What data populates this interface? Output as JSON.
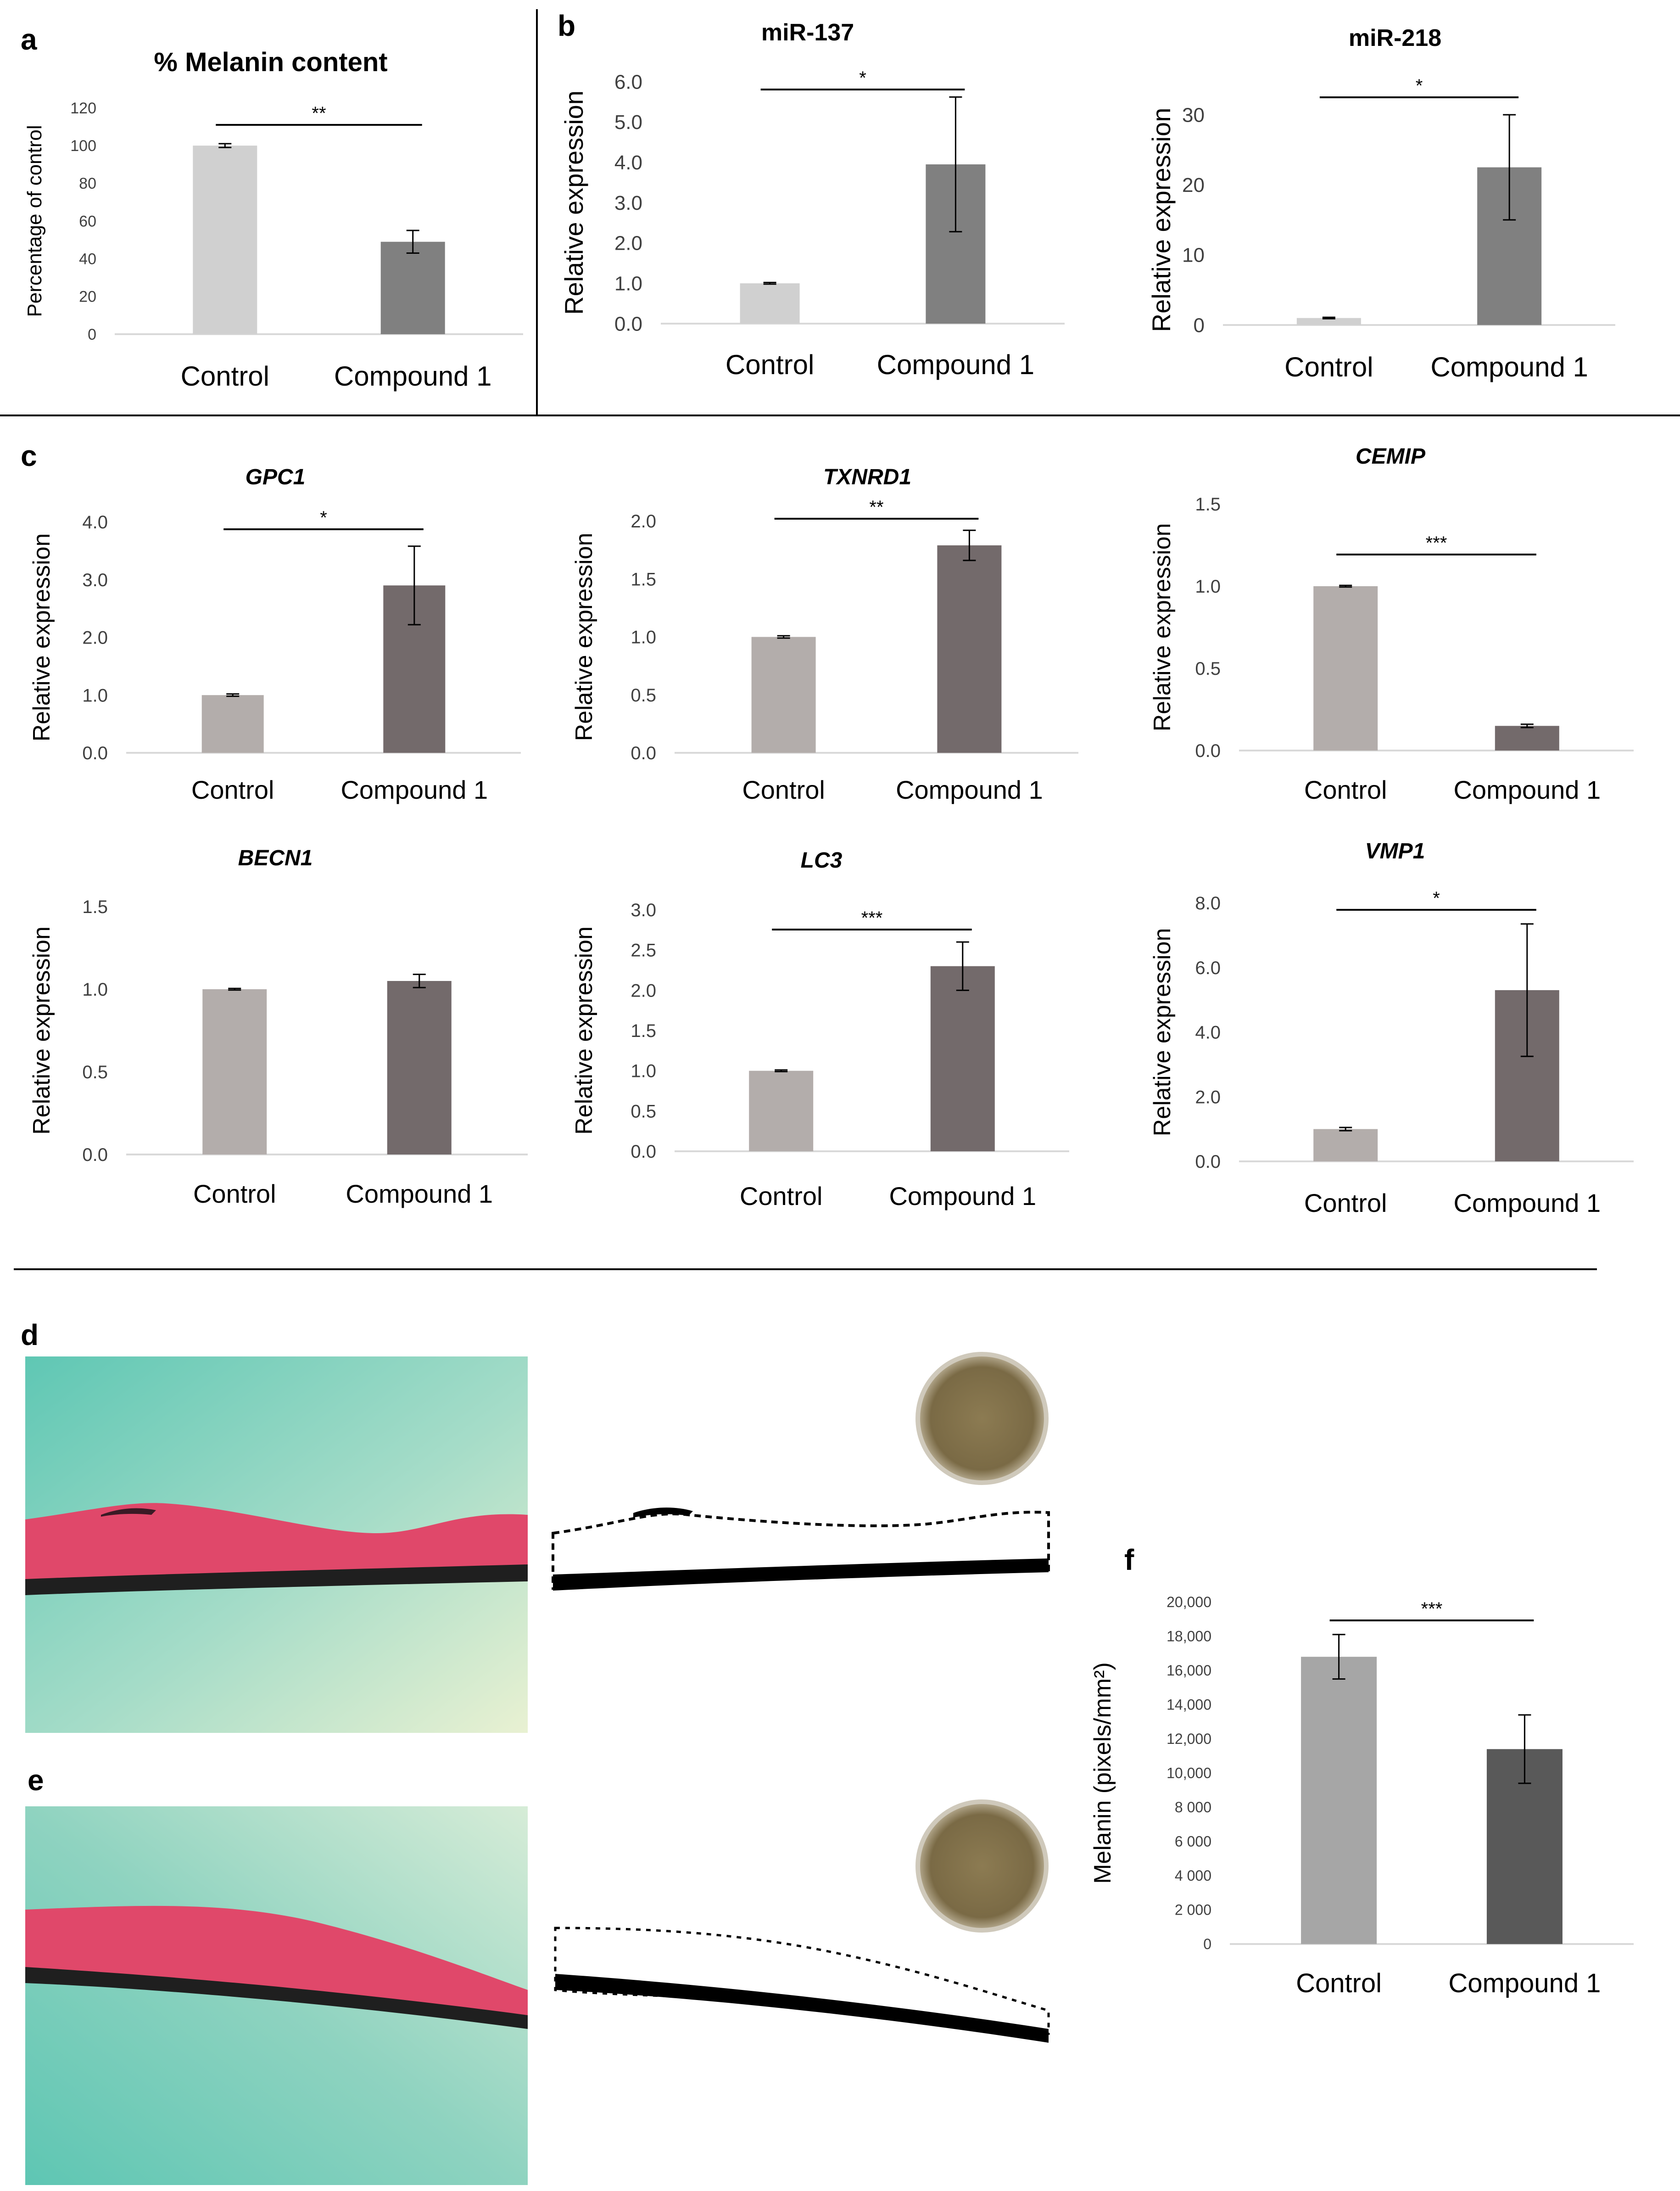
{
  "panel_letters": {
    "a": "a",
    "b": "b",
    "c": "c",
    "d": "d",
    "e": "e",
    "f": "f"
  },
  "colors": {
    "bar_light": "#d0d0d0",
    "bar_dark": "#808080",
    "bar_c_control": "#b3adab",
    "bar_c_compound": "#736a6b",
    "bar_f_control": "#a6a6a6",
    "bar_f_compound": "#595959",
    "axis": "#d9d9d9",
    "text": "#404040",
    "sig_line": "#000000",
    "histology_bg": "#7fd0bd",
    "tissue_pink": "#e0486a",
    "tissue_dark": "#1a1a1a",
    "dish_brown": "#8a7a55"
  },
  "chart_data": [
    {
      "panel": "a",
      "type": "bar",
      "title": "% Melanin content",
      "title_style": "bold",
      "categories": [
        "Control",
        "Compound 1"
      ],
      "values": [
        100,
        49
      ],
      "errors": [
        1,
        6
      ],
      "ylabel": "Percentage of control",
      "ylim": [
        0,
        120
      ],
      "yticks": [
        0,
        20,
        40,
        60,
        80,
        100,
        120
      ],
      "ytick_labels": [
        "0",
        "20",
        "40",
        "60",
        "80",
        "100",
        "120"
      ],
      "significance": "**",
      "color_keys": [
        "bar_light",
        "bar_dark"
      ]
    },
    {
      "panel": "b1",
      "type": "bar",
      "title": "miR-137",
      "title_style": "bold",
      "categories": [
        "Control",
        "Compound 1"
      ],
      "values": [
        1.0,
        3.95
      ],
      "errors": [
        0.02,
        1.67
      ],
      "ylabel": "Relative expression",
      "ylim": [
        0,
        6
      ],
      "yticks": [
        0,
        1,
        2,
        3,
        4,
        5,
        6
      ],
      "ytick_labels": [
        "0.0",
        "1.0",
        "2.0",
        "3.0",
        "4.0",
        "5.0",
        "6.0"
      ],
      "significance": "*",
      "color_keys": [
        "bar_light",
        "bar_dark"
      ]
    },
    {
      "panel": "b2",
      "type": "bar",
      "title": "miR-218",
      "title_style": "bold",
      "categories": [
        "Control",
        "Compound 1"
      ],
      "values": [
        1.0,
        22.5
      ],
      "errors": [
        0.1,
        7.5
      ],
      "ylabel": "Relative expression",
      "ylim": [
        0,
        30
      ],
      "yticks": [
        0,
        10,
        20,
        30
      ],
      "ytick_labels": [
        "0",
        "10",
        "20",
        "30"
      ],
      "significance": "*",
      "color_keys": [
        "bar_light",
        "bar_dark"
      ]
    },
    {
      "panel": "c1",
      "type": "bar",
      "title": "GPC1",
      "title_style": "bolditalic",
      "categories": [
        "Control",
        "Compound 1"
      ],
      "values": [
        1.0,
        2.9
      ],
      "errors": [
        0.02,
        0.68
      ],
      "ylabel": "Relative expression",
      "ylim": [
        0,
        4
      ],
      "yticks": [
        0,
        1,
        2,
        3,
        4
      ],
      "ytick_labels": [
        "0.0",
        "1.0",
        "2.0",
        "3.0",
        "4.0"
      ],
      "significance": "*",
      "color_keys": [
        "bar_c_control",
        "bar_c_compound"
      ]
    },
    {
      "panel": "c2",
      "type": "bar",
      "title": "TXNRD1",
      "title_style": "bolditalic",
      "categories": [
        "Control",
        "Compound 1"
      ],
      "values": [
        1.0,
        1.79
      ],
      "errors": [
        0.01,
        0.13
      ],
      "ylabel": "Relative expression",
      "ylim": [
        0,
        2
      ],
      "yticks": [
        0,
        0.5,
        1,
        1.5,
        2
      ],
      "ytick_labels": [
        "0.0",
        "0.5",
        "1.0",
        "1.5",
        "2.0"
      ],
      "significance": "**",
      "color_keys": [
        "bar_c_control",
        "bar_c_compound"
      ]
    },
    {
      "panel": "c3",
      "type": "bar",
      "title": "CEMIP",
      "title_style": "bolditalic",
      "categories": [
        "Control",
        "Compound 1"
      ],
      "values": [
        1.0,
        0.15
      ],
      "errors": [
        0.005,
        0.01
      ],
      "ylabel": "Relative expression",
      "ylim": [
        0,
        1.5
      ],
      "yticks": [
        0,
        0.5,
        1,
        1.5
      ],
      "ytick_labels": [
        "0.0",
        "0.5",
        "1.0",
        "1.5"
      ],
      "significance": "***",
      "color_keys": [
        "bar_c_control",
        "bar_c_compound"
      ]
    },
    {
      "panel": "c4",
      "type": "bar",
      "title": "BECN1",
      "title_style": "bolditalic",
      "categories": [
        "Control",
        "Compound 1"
      ],
      "values": [
        1.0,
        1.05
      ],
      "errors": [
        0.005,
        0.04
      ],
      "ylabel": "Relative expression",
      "ylim": [
        0,
        1.5
      ],
      "yticks": [
        0,
        0.5,
        1,
        1.5
      ],
      "ytick_labels": [
        "0.0",
        "0.5",
        "1.0",
        "1.5"
      ],
      "significance": "",
      "color_keys": [
        "bar_c_control",
        "bar_c_compound"
      ]
    },
    {
      "panel": "c5",
      "type": "bar",
      "title": "LC3",
      "title_style": "bolditalic",
      "categories": [
        "Control",
        "Compound 1"
      ],
      "values": [
        1.0,
        2.3
      ],
      "errors": [
        0.01,
        0.3
      ],
      "ylabel": "Relative expression",
      "ylim": [
        0,
        3
      ],
      "yticks": [
        0,
        0.5,
        1,
        1.5,
        2,
        2.5,
        3
      ],
      "ytick_labels": [
        "0.0",
        "0.5",
        "1.0",
        "1.5",
        "2.0",
        "2.5",
        "3.0"
      ],
      "significance": "***",
      "color_keys": [
        "bar_c_control",
        "bar_c_compound"
      ]
    },
    {
      "panel": "c6",
      "type": "bar",
      "title": "VMP1",
      "title_style": "bolditalic",
      "categories": [
        "Control",
        "Compound 1"
      ],
      "values": [
        1.0,
        5.3
      ],
      "errors": [
        0.05,
        2.05
      ],
      "ylabel": "Relative expression",
      "ylim": [
        0,
        8
      ],
      "yticks": [
        0,
        2,
        4,
        6,
        8
      ],
      "ytick_labels": [
        "0.0",
        "2.0",
        "4.0",
        "6.0",
        "8.0"
      ],
      "significance": "*",
      "color_keys": [
        "bar_c_control",
        "bar_c_compound"
      ]
    },
    {
      "panel": "f",
      "type": "bar",
      "title": "",
      "title_style": "bold",
      "categories": [
        "Control",
        "Compound 1"
      ],
      "values": [
        16800,
        11400
      ],
      "errors": [
        1300,
        2000
      ],
      "ylabel": "Melanin (pixels/mm²)",
      "ylim": [
        0,
        20000
      ],
      "yticks": [
        0,
        2000,
        4000,
        6000,
        8000,
        10000,
        12000,
        14000,
        16000,
        18000,
        20000
      ],
      "ytick_labels": [
        "0",
        "2 000",
        "4 000",
        "6 000",
        "8 000",
        "10,000",
        "12,000",
        "14,000",
        "16,000",
        "18,000",
        "20,000"
      ],
      "significance": "***",
      "color_keys": [
        "bar_f_control",
        "bar_f_compound"
      ]
    }
  ]
}
